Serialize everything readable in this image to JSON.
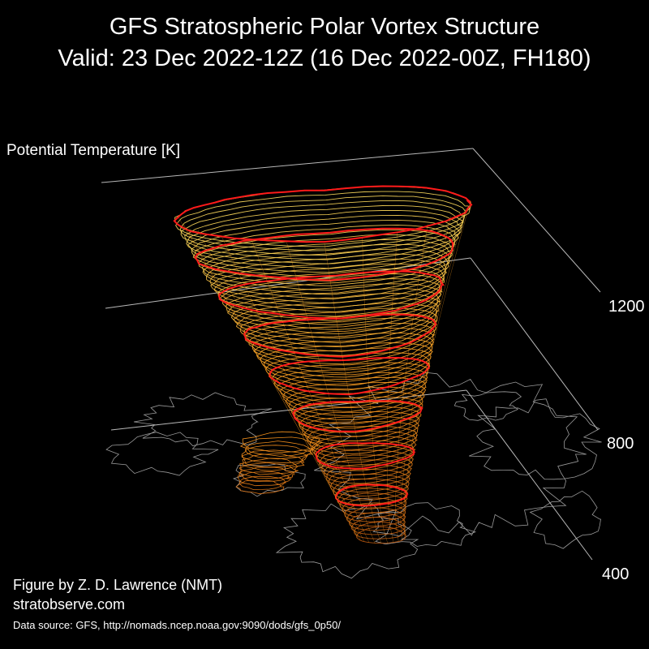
{
  "chart_data": {
    "type": "3d-isosurface",
    "title": "GFS Stratospheric Polar Vortex Structure",
    "subtitle": "Valid: 23 Dec 2022-12Z  (16 Dec 2022-00Z, FH180)",
    "zlabel": "Potential Temperature [K]",
    "z_ticks": [
      400,
      800,
      1200
    ],
    "zlim": [
      400,
      1200
    ],
    "highlight_levels_K": [
      500,
      600,
      700,
      800,
      900,
      1000,
      1100,
      1200
    ],
    "colors": {
      "low_levels": "#c05a10",
      "mid_levels": "#ffa020",
      "high_levels": "#ffe060",
      "highlight": "#ff1a1a",
      "coastlines": "#9a9a9a",
      "axes": "#b8b8b8"
    },
    "grid": true,
    "legend": "none"
  },
  "credits": {
    "author": "Figure by Z. D. Lawrence (NMT)",
    "site": "stratobserve.com",
    "source": "Data source: GFS, http://nomads.ncep.noaa.gov:9090/dods/gfs_0p50/"
  }
}
